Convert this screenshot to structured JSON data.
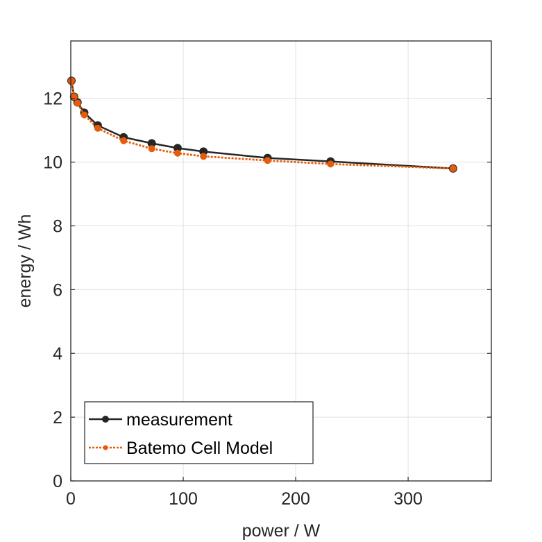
{
  "chart_data": {
    "type": "line",
    "title": "",
    "xlabel": "power / W",
    "ylabel": "energy / Wh",
    "xlim": [
      0,
      374
    ],
    "ylim": [
      0,
      13.8
    ],
    "xticks": [
      0,
      100,
      200,
      300
    ],
    "yticks": [
      0,
      2,
      4,
      6,
      8,
      10,
      12
    ],
    "xtick_labels": [
      "0",
      "100",
      "200",
      "300"
    ],
    "ytick_labels": [
      "0",
      "2",
      "4",
      "6",
      "8",
      "10",
      "12"
    ],
    "grid": true,
    "legend_position": "bottom-left",
    "series": [
      {
        "name": "measurement",
        "color": "#262626",
        "line_style": "solid",
        "marker": "circle",
        "x": [
          0.6,
          3,
          6,
          12,
          24,
          47,
          72,
          95,
          118,
          175,
          231,
          340
        ],
        "y": [
          12.55,
          12.05,
          11.87,
          11.55,
          11.15,
          10.78,
          10.59,
          10.44,
          10.33,
          10.13,
          10.02,
          9.8
        ]
      },
      {
        "name": "Batemo Cell Model",
        "color": "#e65c0a",
        "line_style": "dotted",
        "marker": "circle",
        "x": [
          0.6,
          3,
          6,
          12,
          24,
          47,
          72,
          95,
          118,
          175,
          231,
          340
        ],
        "y": [
          12.55,
          12.05,
          11.85,
          11.48,
          11.06,
          10.67,
          10.42,
          10.28,
          10.18,
          10.05,
          9.94,
          9.8
        ]
      }
    ]
  }
}
